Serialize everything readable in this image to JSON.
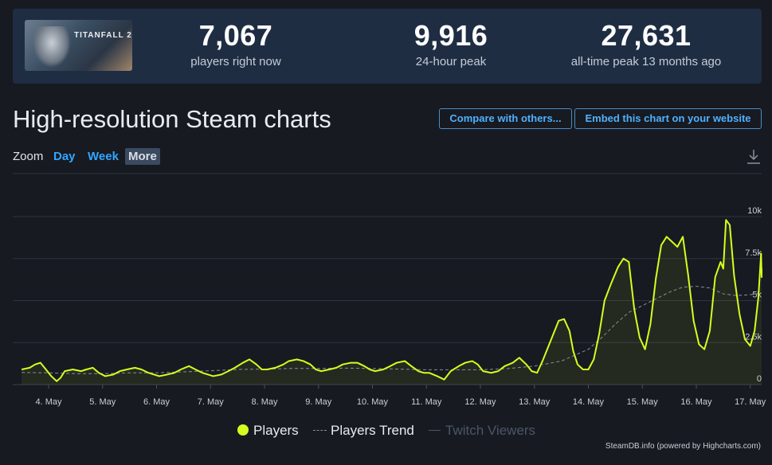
{
  "game": {
    "logo_text": "TITANFALL 2"
  },
  "stats": [
    {
      "value": "7,067",
      "label": "players right now"
    },
    {
      "value": "9,916",
      "label": "24-hour peak"
    },
    {
      "value": "27,631",
      "label": "all-time peak 13 months ago"
    }
  ],
  "header": {
    "title": "High-resolution Steam charts",
    "compare_button": "Compare with others...",
    "embed_button": "Embed this chart on your website"
  },
  "zoom": {
    "label": "Zoom",
    "options": [
      "Day",
      "Week",
      "More"
    ],
    "selected": "More"
  },
  "icons": {
    "download": "download-icon"
  },
  "legend": {
    "players": "Players",
    "trend": "Players Trend",
    "twitch": "Twitch Viewers"
  },
  "credits": "SteamDB.info (powered by Highcharts.com)",
  "colors": {
    "players": "#d5ff1e",
    "trend": "#888f99",
    "accent": "#33a6ff",
    "twitch": "#4b5668"
  },
  "chart_data": {
    "type": "line",
    "x_unit": "day of May",
    "x_range": [
      3.5,
      17.8
    ],
    "ylim": [
      0,
      10000
    ],
    "y_ticks": [
      0,
      2500,
      5000,
      7500,
      10000
    ],
    "y_tick_labels": [
      "0",
      "2.5k",
      "5k",
      "7.5k",
      "10k"
    ],
    "x_ticks": [
      4,
      5,
      6,
      7,
      8,
      9,
      10,
      11,
      12,
      13,
      14,
      15,
      16,
      17
    ],
    "x_tick_labels": [
      "4. May",
      "5. May",
      "6. May",
      "7. May",
      "8. May",
      "9. May",
      "10. May",
      "11. May",
      "12. May",
      "13. May",
      "14. May",
      "15. May",
      "16. May",
      "17. May"
    ],
    "grid": true,
    "legend_placement": "bottom-center",
    "series": [
      {
        "name": "Players",
        "x": [
          3.5,
          3.65,
          3.75,
          3.85,
          3.95,
          4.05,
          4.15,
          4.22,
          4.3,
          4.45,
          4.6,
          4.7,
          4.82,
          4.93,
          5.05,
          5.2,
          5.32,
          5.45,
          5.6,
          5.72,
          5.85,
          5.95,
          6.05,
          6.2,
          6.33,
          6.45,
          6.6,
          6.72,
          6.85,
          6.95,
          7.05,
          7.2,
          7.33,
          7.45,
          7.6,
          7.72,
          7.85,
          7.95,
          8.05,
          8.2,
          8.35,
          8.45,
          8.6,
          8.72,
          8.85,
          8.95,
          9.05,
          9.2,
          9.33,
          9.45,
          9.6,
          9.72,
          9.85,
          9.95,
          10.05,
          10.2,
          10.33,
          10.45,
          10.6,
          10.72,
          10.85,
          10.95,
          11.05,
          11.2,
          11.33,
          11.45,
          11.6,
          11.72,
          11.85,
          11.95,
          12.05,
          12.2,
          12.33,
          12.45,
          12.6,
          12.72,
          12.85,
          12.95,
          13.05,
          13.15,
          13.25,
          13.35,
          13.45,
          13.55,
          13.65,
          13.72,
          13.8,
          13.9,
          14.0,
          14.1,
          14.2,
          14.3,
          14.42,
          14.55,
          14.65,
          14.75,
          14.85,
          14.95,
          15.05,
          15.15,
          15.25,
          15.35,
          15.45,
          15.55,
          15.65,
          15.75,
          15.85,
          15.95,
          16.05,
          16.15,
          16.25,
          16.35,
          16.45,
          16.5,
          16.55,
          16.62,
          16.7,
          16.8,
          16.9,
          17.0,
          17.08,
          17.15,
          17.2,
          17.25,
          17.3,
          17.35
        ],
        "y": [
          900,
          1000,
          1200,
          1300,
          900,
          500,
          200,
          400,
          800,
          900,
          800,
          900,
          1000,
          700,
          500,
          600,
          800,
          900,
          1000,
          900,
          700,
          600,
          500,
          600,
          700,
          900,
          1100,
          900,
          700,
          600,
          500,
          600,
          800,
          1000,
          1300,
          1500,
          1200,
          900,
          900,
          1000,
          1200,
          1400,
          1500,
          1400,
          1200,
          900,
          800,
          900,
          1000,
          1200,
          1300,
          1300,
          1100,
          900,
          800,
          900,
          1100,
          1300,
          1400,
          1100,
          800,
          700,
          700,
          500,
          300,
          800,
          1100,
          1300,
          1400,
          1200,
          800,
          700,
          800,
          1100,
          1300,
          1600,
          1200,
          800,
          700,
          1400,
          2200,
          3000,
          3800,
          3900,
          3200,
          2000,
          1200,
          900,
          900,
          1500,
          3000,
          5000,
          6000,
          7000,
          7500,
          7300,
          4500,
          2800,
          2100,
          3600,
          6300,
          8300,
          8800,
          8500,
          8200,
          8800,
          6500,
          3800,
          2400,
          2100,
          3200,
          6400,
          7300,
          6900,
          9800,
          9500,
          6500,
          4200,
          2700,
          2300,
          3200,
          5200,
          7800,
          6400,
          6500,
          6900
        ],
        "color": "#d5ff1e"
      },
      {
        "name": "Players Trend",
        "x": [
          3.5,
          4.0,
          4.5,
          5.0,
          5.5,
          6.0,
          6.5,
          7.0,
          7.5,
          8.0,
          8.5,
          9.0,
          9.5,
          10.0,
          10.5,
          11.0,
          11.5,
          12.0,
          12.5,
          13.0,
          13.5,
          14.0,
          14.25,
          14.5,
          14.75,
          15.0,
          15.25,
          15.5,
          15.75,
          16.0,
          16.25,
          16.5,
          16.75,
          17.0,
          17.35
        ],
        "y": [
          720,
          700,
          650,
          650,
          700,
          700,
          760,
          820,
          900,
          920,
          960,
          960,
          980,
          960,
          920,
          880,
          880,
          880,
          950,
          1100,
          1400,
          2100,
          2800,
          3600,
          4300,
          4700,
          5100,
          5500,
          5800,
          5850,
          5750,
          5400,
          5300,
          5350,
          5450
        ],
        "color": "#888f99"
      }
    ]
  }
}
